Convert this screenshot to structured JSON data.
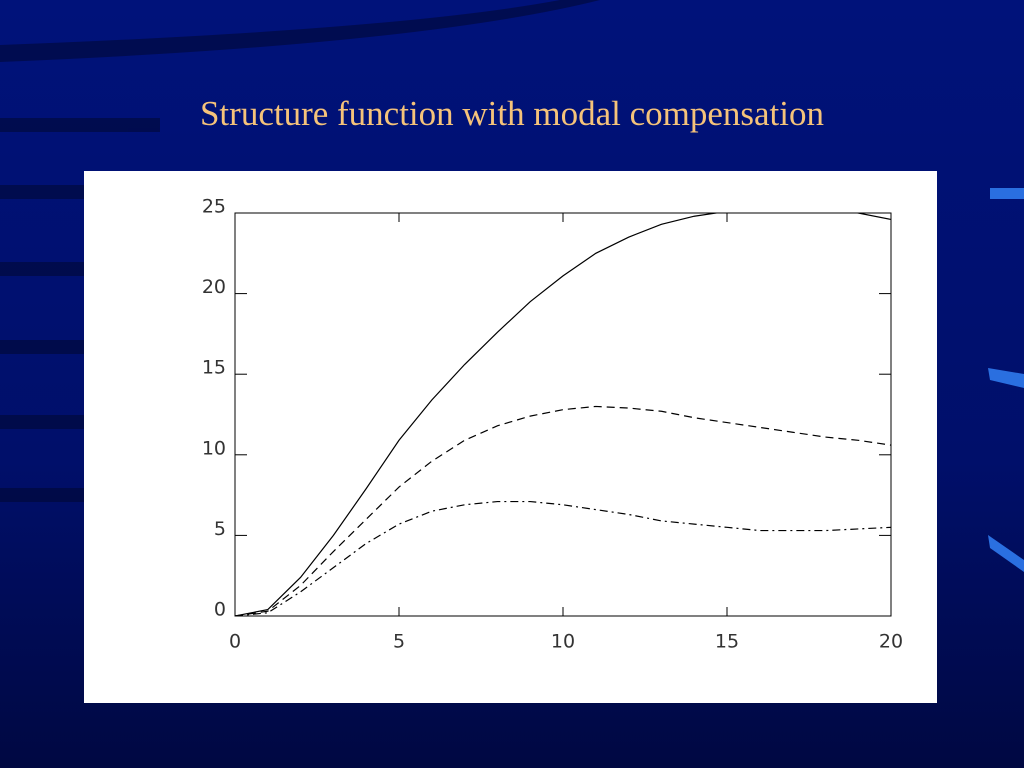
{
  "chart_data": {
    "type": "line",
    "title": "Structure function with modal compensation",
    "x": [
      0,
      1,
      2,
      3,
      4,
      5,
      6,
      7,
      8,
      9,
      10,
      11,
      12,
      13,
      14,
      15,
      16,
      17,
      18,
      19,
      20
    ],
    "series": [
      {
        "color": "#000000",
        "dash": "solid",
        "values": [
          0,
          0.4,
          2.4,
          5.0,
          7.9,
          10.9,
          13.4,
          15.6,
          17.6,
          19.5,
          21.1,
          22.5,
          23.5,
          24.3,
          24.8,
          25.1,
          25.3,
          25.4,
          25.3,
          25.0,
          24.6
        ]
      },
      {
        "color": "#000000",
        "dash": "dashed",
        "values": [
          0,
          0.3,
          1.9,
          4.0,
          6.0,
          8.0,
          9.6,
          10.9,
          11.8,
          12.4,
          12.8,
          13.0,
          12.9,
          12.7,
          12.3,
          12.0,
          11.7,
          11.4,
          11.1,
          10.9,
          10.6
        ]
      },
      {
        "color": "#000000",
        "dash": "dashdot",
        "values": [
          0,
          0.2,
          1.5,
          3.0,
          4.5,
          5.7,
          6.5,
          6.9,
          7.1,
          7.1,
          6.9,
          6.6,
          6.3,
          5.9,
          5.7,
          5.5,
          5.3,
          5.3,
          5.3,
          5.4,
          5.5
        ]
      }
    ],
    "xlim": [
      0,
      20
    ],
    "xticks": [
      0,
      5,
      10,
      15,
      20
    ],
    "ylim": [
      0,
      25
    ],
    "yticks": [
      0,
      5,
      10,
      15,
      20,
      25
    ]
  }
}
